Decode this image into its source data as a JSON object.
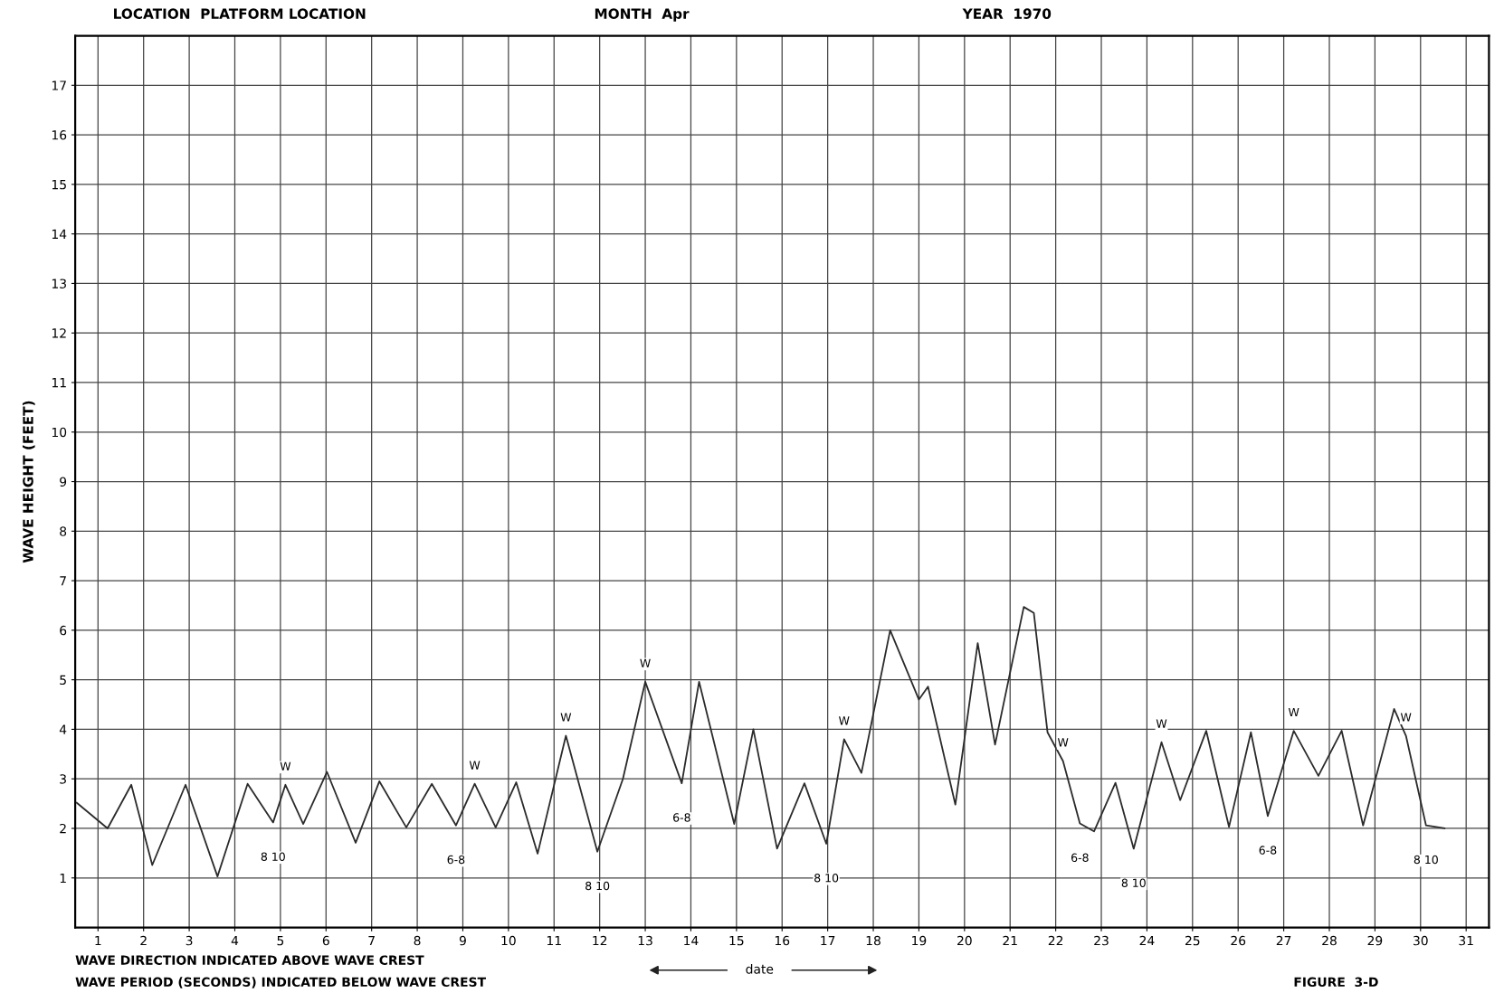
{
  "chart_data": {
    "type": "line",
    "title": "LOCATION  PLATFORM LOCATION",
    "subtitle": "MONTH  Apr",
    "xlabel": "date",
    "ylabel": "WAVE HEIGHT (FEET)",
    "x": [
      0.53,
      1.21,
      1.73,
      2.19,
      2.92,
      3.62,
      4.28,
      4.84,
      5.11,
      5.5,
      6.02,
      6.65,
      7.17,
      7.76,
      8.32,
      8.85,
      9.26,
      9.72,
      10.17,
      10.64,
      11.26,
      11.95,
      12.51,
      13.0,
      13.8,
      14.18,
      14.95,
      15.37,
      15.89,
      16.49,
      16.97,
      17.36,
      17.74,
      18.37,
      19.0,
      19.2,
      19.8,
      20.29,
      20.67,
      21.3,
      21.52,
      21.82,
      22.16,
      22.53,
      22.84,
      23.31,
      23.71,
      24.32,
      24.73,
      25.3,
      25.8,
      26.28,
      26.65,
      27.22,
      27.76,
      28.27,
      28.74,
      29.42,
      29.68,
      30.12,
      30.53
    ],
    "series": [
      {
        "color": "#2b2b2b",
        "values": [
          2.52,
          2.0,
          2.88,
          1.26,
          2.88,
          1.03,
          2.9,
          2.12,
          2.88,
          2.09,
          3.14,
          1.71,
          2.95,
          2.02,
          2.9,
          2.06,
          2.9,
          2.02,
          2.93,
          1.49,
          3.87,
          1.53,
          3.0,
          4.96,
          2.91,
          4.96,
          2.09,
          4.0,
          1.59,
          2.91,
          1.69,
          3.8,
          3.12,
          6.0,
          4.6,
          4.86,
          2.48,
          5.74,
          3.69,
          6.47,
          6.35,
          3.94,
          3.36,
          2.1,
          1.94,
          2.92,
          1.59,
          3.74,
          2.57,
          3.97,
          2.03,
          3.94,
          2.25,
          3.97,
          3.06,
          3.97,
          2.06,
          4.41,
          3.87,
          2.06,
          2.0
        ]
      }
    ],
    "xlim": [
      0.5,
      31.5
    ],
    "xticks": [
      1,
      2,
      3,
      4,
      5,
      6,
      7,
      8,
      9,
      10,
      11,
      12,
      13,
      14,
      15,
      16,
      17,
      18,
      19,
      20,
      21,
      22,
      23,
      24,
      25,
      26,
      27,
      28,
      29,
      30,
      31
    ],
    "ylim": [
      0,
      18
    ],
    "yticks": [
      1,
      2,
      3,
      4,
      5,
      6,
      7,
      8,
      9,
      10,
      11,
      12,
      13,
      14,
      15,
      16,
      17
    ],
    "grid": true,
    "marker": "none",
    "line_style": "solid",
    "annotations": [
      {
        "text": "W",
        "x": 5.11,
        "y": 2.88
      },
      {
        "text": "8 10",
        "x": 4.84,
        "y": 2.12
      },
      {
        "text": "W",
        "x": 9.26,
        "y": 2.9
      },
      {
        "text": "6-8",
        "x": 8.85,
        "y": 2.06
      },
      {
        "text": "W",
        "x": 11.26,
        "y": 3.87
      },
      {
        "text": "8 10",
        "x": 11.95,
        "y": 1.53
      },
      {
        "text": "W",
        "x": 13.0,
        "y": 4.96
      },
      {
        "text": "6-8",
        "x": 13.8,
        "y": 2.91
      },
      {
        "text": "W",
        "x": 17.36,
        "y": 3.8
      },
      {
        "text": "8 10",
        "x": 16.97,
        "y": 1.69
      },
      {
        "text": "W",
        "x": 22.16,
        "y": 3.36
      },
      {
        "text": "6-8",
        "x": 22.53,
        "y": 2.1
      },
      {
        "text": "W",
        "x": 24.32,
        "y": 3.74
      },
      {
        "text": "8 10",
        "x": 23.71,
        "y": 1.59
      },
      {
        "text": "W",
        "x": 27.22,
        "y": 3.97
      },
      {
        "text": "6-8",
        "x": 26.65,
        "y": 2.25
      },
      {
        "text": "W",
        "x": 29.68,
        "y": 3.87
      },
      {
        "text": "8 10",
        "x": 30.12,
        "y": 2.06
      },
      "YEAR  1970",
      "WAVE DIRECTION INDICATED ABOVE WAVE CREST",
      "WAVE PERIOD (SECONDS) INDICATED BELOW WAVE CREST",
      "FIGURE  3-D"
    ]
  }
}
